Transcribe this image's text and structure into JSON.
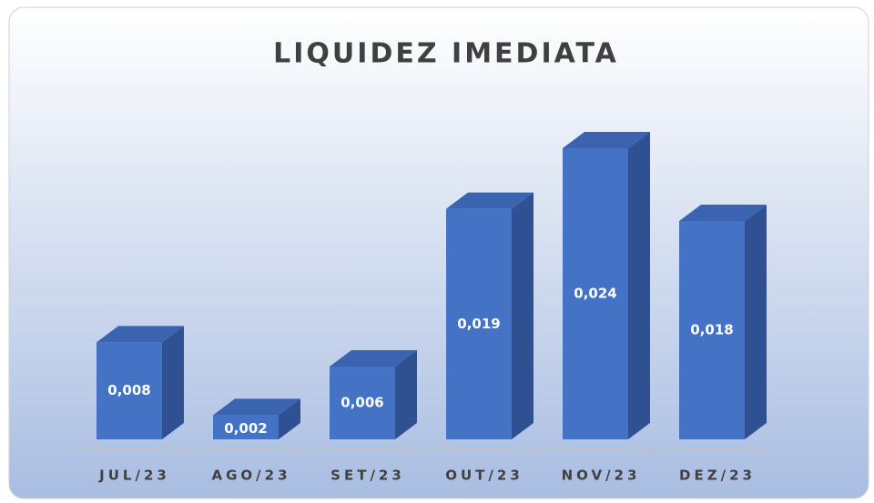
{
  "chart_data": {
    "type": "bar3d",
    "title": "LIQUIDEZ IMEDIATA",
    "categories": [
      "JUL/23",
      "AGO/23",
      "SET/23",
      "OUT/23",
      "NOV/23",
      "DEZ/23"
    ],
    "values": [
      0.008,
      0.002,
      0.006,
      0.019,
      0.024,
      0.018
    ],
    "value_labels": [
      "0,008",
      "0,002",
      "0,006",
      "0,019",
      "0,024",
      "0,018"
    ],
    "color": "#4472c4"
  }
}
